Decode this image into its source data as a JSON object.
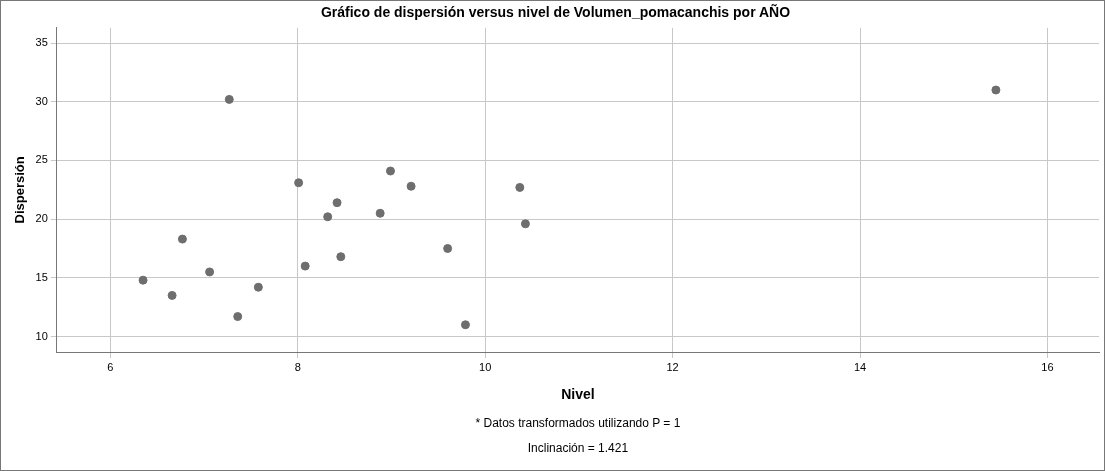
{
  "chart_data": {
    "type": "scatter",
    "title": "Gráfico de dispersión versus nivel de Volumen_pomacanchis por AÑO",
    "xlabel": "Nivel",
    "ylabel": "Dispersión",
    "annotations": [
      "* Datos transformados utilizando P = 1",
      "Inclinación = 1.421"
    ],
    "series": [
      {
        "color": "#6e6e6e",
        "x": [
          6.35,
          6.66,
          6.77,
          7.06,
          7.36,
          7.58,
          8.08,
          8.46,
          9.6,
          9.79,
          10.43,
          8.32,
          8.88,
          7.27,
          8.01,
          8.99,
          9.21,
          8.42,
          10.37,
          15.45
        ],
        "values": [
          14.8,
          13.5,
          18.3,
          15.5,
          11.7,
          14.2,
          16.0,
          16.8,
          17.5,
          11.0,
          19.6,
          20.2,
          20.5,
          30.2,
          23.1,
          24.1,
          22.8,
          21.4,
          22.7,
          31.0
        ]
      }
    ],
    "xlim": [
      5.43,
      16.55
    ],
    "xticks": [
      6,
      8,
      10,
      12,
      14,
      16
    ],
    "ylim": [
      8.68,
      36.3
    ],
    "yticks": [
      10,
      15,
      20,
      25,
      30,
      35
    ],
    "grid": true,
    "legend": false,
    "marker": "circle"
  }
}
